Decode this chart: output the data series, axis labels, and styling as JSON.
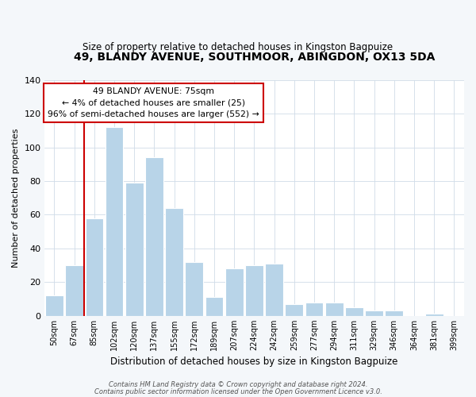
{
  "title": "49, BLANDY AVENUE, SOUTHMOOR, ABINGDON, OX13 5DA",
  "subtitle": "Size of property relative to detached houses in Kingston Bagpuize",
  "xlabel": "Distribution of detached houses by size in Kingston Bagpuize",
  "ylabel": "Number of detached properties",
  "bar_labels": [
    "50sqm",
    "67sqm",
    "85sqm",
    "102sqm",
    "120sqm",
    "137sqm",
    "155sqm",
    "172sqm",
    "189sqm",
    "207sqm",
    "224sqm",
    "242sqm",
    "259sqm",
    "277sqm",
    "294sqm",
    "311sqm",
    "329sqm",
    "346sqm",
    "364sqm",
    "381sqm",
    "399sqm"
  ],
  "bar_values": [
    12,
    30,
    58,
    112,
    79,
    94,
    64,
    32,
    11,
    28,
    30,
    31,
    7,
    8,
    8,
    5,
    3,
    3,
    0,
    1,
    0
  ],
  "bar_color": "#b8d4e8",
  "bar_edge_color": "#c8dff0",
  "vline_x_index": 1.5,
  "vline_color": "#cc0000",
  "ylim": [
    0,
    140
  ],
  "yticks": [
    0,
    20,
    40,
    60,
    80,
    100,
    120,
    140
  ],
  "annotation_title": "49 BLANDY AVENUE: 75sqm",
  "annotation_line1": "← 4% of detached houses are smaller (25)",
  "annotation_line2": "96% of semi-detached houses are larger (552) →",
  "annotation_box_facecolor": "#ffffff",
  "annotation_box_edgecolor": "#cc0000",
  "footer_line1": "Contains HM Land Registry data © Crown copyright and database right 2024.",
  "footer_line2": "Contains public sector information licensed under the Open Government Licence v3.0.",
  "fig_bg_color": "#f4f7fa",
  "plot_bg_color": "#ffffff",
  "grid_color": "#d0dce8"
}
